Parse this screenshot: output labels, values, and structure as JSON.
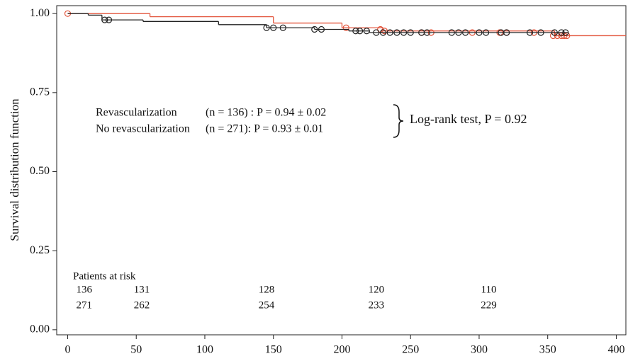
{
  "chart_data": {
    "type": "line",
    "step": true,
    "y_label": "Survival distribution function",
    "xlim": [
      -8,
      407
    ],
    "ylim": [
      -0.016,
      1.025
    ],
    "xticks": [
      0,
      50,
      100,
      150,
      200,
      250,
      300,
      350,
      400
    ],
    "yticks": [
      {
        "value": 0,
        "label": "0.00"
      },
      {
        "value": 0.25,
        "label": "0.25"
      },
      {
        "value": 0.5,
        "label": "0.50"
      },
      {
        "value": 0.75,
        "label": "0.75"
      },
      {
        "value": 1,
        "label": "1.00"
      }
    ],
    "series": [
      {
        "name": "Revascularization",
        "stat": "(n = 136) : P = 0.94 ± 0.02",
        "color": "#e2553c",
        "x": [
          0,
          60,
          150,
          200,
          230,
          355,
          407
        ],
        "values": [
          1.0,
          0.99,
          0.97,
          0.955,
          0.945,
          0.93,
          0.93
        ],
        "censored_x": [
          0,
          203,
          228,
          231,
          258,
          265,
          295,
          315,
          320,
          340,
          354,
          357,
          360,
          362,
          364
        ],
        "censored_values": [
          1.0,
          0.955,
          0.95,
          0.945,
          0.94,
          0.94,
          0.94,
          0.94,
          0.94,
          0.94,
          0.93,
          0.93,
          0.93,
          0.93,
          0.93
        ],
        "at_risk": [
          136,
          131,
          128,
          120,
          110
        ]
      },
      {
        "name": "No revascularization",
        "stat": "(n = 271): P = 0.93 ± 0.01",
        "color": "#222222",
        "x": [
          0,
          15,
          25,
          55,
          110,
          145,
          180,
          205,
          220,
          365
        ],
        "values": [
          1.0,
          0.995,
          0.98,
          0.975,
          0.965,
          0.955,
          0.95,
          0.945,
          0.94,
          0.94
        ],
        "censored_x": [
          27,
          30,
          145,
          150,
          157,
          180,
          185,
          210,
          213,
          218,
          225,
          230,
          235,
          240,
          245,
          250,
          258,
          262,
          280,
          285,
          290,
          300,
          305,
          316,
          320,
          337,
          345,
          355,
          360,
          363
        ],
        "censored_values": [
          0.98,
          0.98,
          0.955,
          0.955,
          0.955,
          0.95,
          0.95,
          0.945,
          0.945,
          0.945,
          0.94,
          0.94,
          0.94,
          0.94,
          0.94,
          0.94,
          0.94,
          0.94,
          0.94,
          0.94,
          0.94,
          0.94,
          0.94,
          0.94,
          0.94,
          0.94,
          0.94,
          0.94,
          0.94,
          0.94
        ],
        "at_risk": [
          271,
          262,
          254,
          233,
          229
        ]
      }
    ],
    "annotation": "Log-rank test, P = 0.92",
    "risk_title": "Patients at risk",
    "risk_x": [
      12,
      54,
      145,
      225,
      307
    ]
  }
}
